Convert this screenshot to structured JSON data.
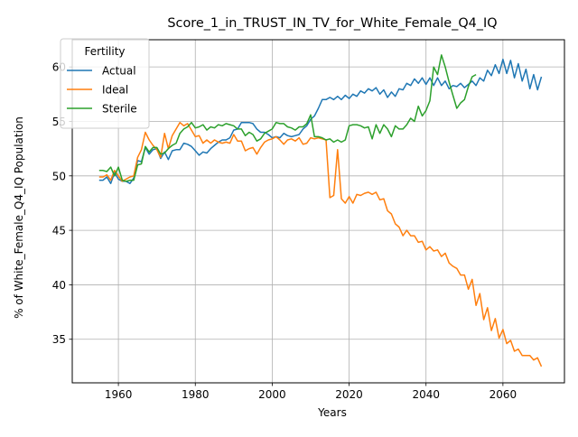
{
  "chart_data": {
    "type": "line",
    "title": "Score_1_in_TRUST_IN_TV_for_White_Female_Q4_IQ",
    "xlabel": "Years",
    "ylabel": "% of White_Female_Q4_IQ Population",
    "xlim": [
      1948,
      2076
    ],
    "ylim": [
      31,
      62.5
    ],
    "xticks": [
      1960,
      1980,
      2000,
      2020,
      2040,
      2060
    ],
    "yticks": [
      35,
      40,
      45,
      50,
      55,
      60
    ],
    "grid": true,
    "legend": {
      "title": "Fertility",
      "placement": "upper-left"
    },
    "series": [
      {
        "name": "Actual",
        "color": "#1f77b4",
        "x": [
          1955,
          1956,
          1957,
          1958,
          1959,
          1960,
          1961,
          1962,
          1963,
          1964,
          1965,
          1966,
          1967,
          1968,
          1969,
          1970,
          1971,
          1972,
          1973,
          1974,
          1975,
          1976,
          1977,
          1978,
          1979,
          1980,
          1981,
          1982,
          1983,
          1984,
          1985,
          1986,
          1987,
          1988,
          1989,
          1990,
          1991,
          1992,
          1993,
          1994,
          1995,
          1996,
          1997,
          1998,
          1999,
          2000,
          2001,
          2002,
          2003,
          2004,
          2005,
          2006,
          2007,
          2008,
          2009,
          2010,
          2011,
          2012,
          2013,
          2014,
          2015,
          2016,
          2017,
          2018,
          2019,
          2020,
          2021,
          2022,
          2023,
          2024,
          2025,
          2026,
          2027,
          2028,
          2029,
          2030,
          2031,
          2032,
          2033,
          2034,
          2035,
          2036,
          2037,
          2038,
          2039,
          2040,
          2041,
          2042,
          2043,
          2044,
          2045,
          2046,
          2047,
          2048,
          2049,
          2050,
          2051,
          2052,
          2053,
          2054,
          2055,
          2056,
          2057,
          2058,
          2059,
          2060,
          2061,
          2062,
          2063,
          2064,
          2065,
          2066,
          2067,
          2068,
          2069,
          2070
        ],
        "values": [
          49.6,
          49.6,
          49.9,
          49.3,
          50.3,
          49.7,
          49.5,
          49.5,
          49.3,
          49.8,
          51.4,
          51.3,
          52.6,
          52.0,
          52.4,
          52.5,
          51.6,
          52.2,
          51.5,
          52.3,
          52.4,
          52.4,
          53.0,
          52.9,
          52.7,
          52.3,
          51.9,
          52.2,
          52.1,
          52.5,
          52.8,
          53.1,
          53.3,
          53.3,
          53.5,
          54.2,
          54.3,
          54.9,
          54.9,
          54.9,
          54.8,
          54.3,
          54.0,
          54.0,
          53.8,
          53.5,
          53.6,
          53.5,
          53.9,
          53.7,
          53.6,
          53.7,
          53.8,
          54.3,
          54.6,
          55.2,
          55.5,
          56.2,
          57.0,
          57.0,
          57.2,
          57.0,
          57.3,
          57.0,
          57.4,
          57.1,
          57.5,
          57.3,
          57.8,
          57.6,
          58.0,
          57.8,
          58.1,
          57.5,
          57.9,
          57.2,
          57.7,
          57.3,
          58.0,
          57.9,
          58.5,
          58.3,
          58.9,
          58.5,
          59.0,
          58.4,
          59.0,
          58.3,
          59.0,
          58.3,
          58.7,
          58.0,
          58.3,
          58.2,
          58.5,
          58.1,
          58.4,
          58.7,
          58.3,
          59.0,
          58.7,
          59.7,
          59.2,
          60.2,
          59.4,
          60.7,
          59.4,
          60.6,
          59.0,
          60.3,
          58.7,
          59.8,
          58.0,
          59.3,
          57.9,
          59.1
        ]
      },
      {
        "name": "Ideal",
        "color": "#ff7f0e",
        "x": [
          1955,
          1956,
          1957,
          1958,
          1959,
          1960,
          1961,
          1962,
          1963,
          1964,
          1965,
          1966,
          1967,
          1968,
          1969,
          1970,
          1971,
          1972,
          1973,
          1974,
          1975,
          1976,
          1977,
          1978,
          1979,
          1980,
          1981,
          1982,
          1983,
          1984,
          1985,
          1986,
          1987,
          1988,
          1989,
          1990,
          1991,
          1992,
          1993,
          1994,
          1995,
          1996,
          1997,
          1998,
          1999,
          2000,
          2001,
          2002,
          2003,
          2004,
          2005,
          2006,
          2007,
          2008,
          2009,
          2010,
          2011,
          2012,
          2013,
          2014,
          2015,
          2016,
          2017,
          2018,
          2019,
          2020,
          2021,
          2022,
          2023,
          2024,
          2025,
          2026,
          2027,
          2028,
          2029,
          2030,
          2031,
          2032,
          2033,
          2034,
          2035,
          2036,
          2037,
          2038,
          2039,
          2040,
          2041,
          2042,
          2043,
          2044,
          2045,
          2046,
          2047,
          2048,
          2049,
          2050,
          2051,
          2052,
          2053,
          2054,
          2055,
          2056,
          2057,
          2058,
          2059,
          2060,
          2061,
          2062,
          2063,
          2064,
          2065,
          2066,
          2067,
          2068,
          2069,
          2070
        ],
        "values": [
          49.9,
          49.9,
          50.1,
          49.6,
          50.5,
          50.0,
          49.5,
          49.7,
          49.9,
          50.0,
          51.7,
          52.4,
          54.0,
          53.3,
          52.8,
          52.4,
          51.7,
          53.9,
          52.5,
          53.7,
          54.3,
          54.9,
          54.6,
          54.8,
          54.2,
          53.6,
          53.7,
          53.0,
          53.3,
          53.0,
          53.3,
          53.1,
          53.0,
          53.1,
          53.0,
          53.8,
          53.2,
          53.2,
          52.3,
          52.5,
          52.6,
          52.0,
          52.6,
          53.1,
          53.3,
          53.4,
          53.6,
          53.3,
          52.9,
          53.3,
          53.4,
          53.2,
          53.5,
          52.9,
          53.0,
          53.5,
          53.4,
          53.5,
          53.4,
          53.3,
          48.0,
          48.2,
          52.4,
          47.9,
          47.5,
          48.1,
          47.5,
          48.3,
          48.2,
          48.4,
          48.5,
          48.3,
          48.5,
          47.8,
          47.9,
          46.8,
          46.5,
          45.6,
          45.3,
          44.5,
          45.0,
          44.5,
          44.5,
          43.9,
          44.0,
          43.2,
          43.5,
          43.1,
          43.2,
          42.6,
          42.9,
          42.0,
          41.7,
          41.5,
          40.9,
          40.9,
          39.6,
          40.5,
          38.1,
          39.2,
          36.8,
          37.9,
          35.8,
          36.9,
          35.1,
          35.9,
          34.6,
          34.9,
          33.9,
          34.1,
          33.5,
          33.5,
          33.5,
          33.1,
          33.3,
          32.5
        ]
      },
      {
        "name": "Sterile",
        "color": "#2ca02c",
        "x": [
          1955,
          1956,
          1957,
          1958,
          1959,
          1960,
          1961,
          1962,
          1963,
          1964,
          1965,
          1966,
          1967,
          1968,
          1969,
          1970,
          1971,
          1972,
          1973,
          1974,
          1975,
          1976,
          1977,
          1978,
          1979,
          1980,
          1981,
          1982,
          1983,
          1984,
          1985,
          1986,
          1987,
          1988,
          1989,
          1990,
          1991,
          1992,
          1993,
          1994,
          1995,
          1996,
          1997,
          1998,
          1999,
          2000,
          2001,
          2002,
          2003,
          2004,
          2005,
          2006,
          2007,
          2008,
          2009,
          2010,
          2011,
          2012,
          2013,
          2014,
          2015,
          2016,
          2017,
          2018,
          2019,
          2020,
          2021,
          2022,
          2023,
          2024,
          2025,
          2026,
          2027,
          2028,
          2029,
          2030,
          2031,
          2032,
          2033,
          2034,
          2035,
          2036,
          2037,
          2038,
          2039,
          2040,
          2041,
          2042,
          2043,
          2044,
          2045,
          2046,
          2047,
          2048,
          2049,
          2050,
          2051,
          2052,
          2053
        ],
        "values": [
          50.5,
          50.5,
          50.4,
          50.8,
          50.0,
          50.8,
          49.6,
          49.5,
          49.6,
          49.6,
          51.0,
          51.1,
          52.7,
          52.2,
          52.6,
          52.6,
          52.0,
          52.1,
          52.5,
          52.8,
          53.0,
          53.9,
          54.3,
          54.5,
          54.9,
          54.4,
          54.5,
          54.7,
          54.2,
          54.5,
          54.4,
          54.7,
          54.6,
          54.8,
          54.7,
          54.6,
          54.3,
          54.3,
          53.7,
          54.0,
          53.8,
          53.2,
          53.4,
          53.9,
          54.1,
          54.3,
          54.9,
          54.8,
          54.8,
          54.5,
          54.4,
          54.2,
          54.5,
          54.5,
          54.8,
          55.6,
          53.6,
          53.6,
          53.5,
          53.3,
          53.4,
          53.1,
          53.3,
          53.1,
          53.3,
          54.6,
          54.7,
          54.7,
          54.6,
          54.4,
          54.5,
          53.4,
          54.7,
          53.9,
          54.7,
          54.3,
          53.6,
          54.6,
          54.3,
          54.3,
          54.7,
          55.3,
          55.0,
          56.4,
          55.5,
          56.0,
          56.9,
          60.0,
          59.3,
          61.1,
          60.0,
          58.6,
          57.4,
          56.2,
          56.7,
          57.0,
          58.2,
          59.1,
          59.3
        ]
      }
    ]
  }
}
